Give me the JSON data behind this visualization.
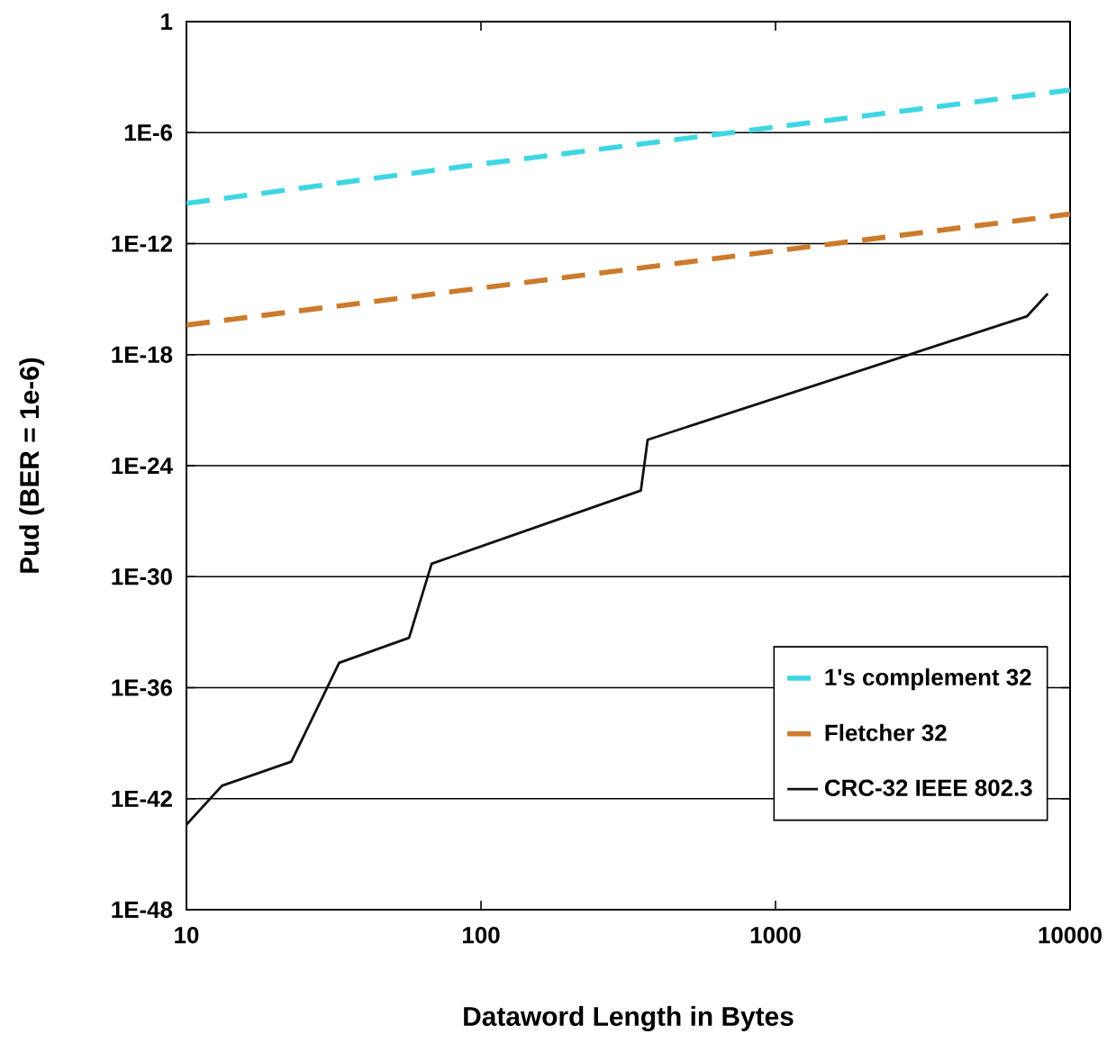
{
  "chart_data": {
    "type": "line",
    "xlabel": "Dataword Length in Bytes",
    "ylabel": "Pud (BER = 1e-6)",
    "log": "xy",
    "grid": "y",
    "legend": "bottom right",
    "marker": "none",
    "xlim": [
      10,
      10000
    ],
    "xticks": [
      10,
      100,
      1000,
      10000
    ],
    "ylim": [
      1e-48,
      1
    ],
    "yticks": [
      1,
      {
        "value": 1e-06,
        "label": "1E-6"
      },
      {
        "value": 1e-12,
        "label": "1E-12"
      },
      {
        "value": 1e-18,
        "label": "1E-18"
      },
      {
        "value": 1e-24,
        "label": "1E-24"
      },
      {
        "value": 1e-30,
        "label": "1E-30"
      },
      {
        "value": 1e-36,
        "label": "1E-36"
      },
      {
        "value": 1e-42,
        "label": "1E-42"
      },
      {
        "value": 1e-48,
        "label": "1E-48"
      }
    ],
    "series": [
      {
        "name": "1's complement 32",
        "color": "#3fd6e4",
        "line_style": "dashed",
        "x": [
          10,
          100,
          1000,
          10000
        ],
        "values": [
          1.5e-10,
          2e-08,
          2e-06,
          0.0002
        ]
      },
      {
        "name": "Fletcher  32",
        "color": "#cc7a2c",
        "line_style": "dashed",
        "x": [
          10,
          100,
          1000,
          10000
        ],
        "values": [
          4e-17,
          4e-15,
          4e-13,
          4e-11
        ]
      },
      {
        "name": "CRC-32 IEEE 802.3",
        "color": "#111111",
        "line_style": "solid",
        "x": [
          10,
          13.2,
          22.7,
          33,
          57,
          68,
          349,
          368,
          7150,
          8400
        ],
        "values": [
          4e-44,
          5e-42,
          1e-40,
          2.2e-35,
          5e-34,
          5e-30,
          4.5e-26,
          2.5e-23,
          1.2e-16,
          2e-15
        ]
      }
    ]
  }
}
